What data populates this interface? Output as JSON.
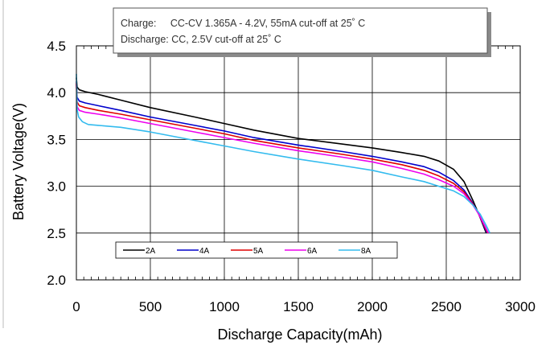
{
  "chart_data": {
    "type": "line",
    "xlabel": "Discharge Capacity(mAh)",
    "ylabel": "Battery Voltage(V)",
    "xlim": [
      0,
      3000
    ],
    "ylim": [
      2.0,
      4.5
    ],
    "xticks": [
      0,
      500,
      1000,
      1500,
      2000,
      2500,
      3000
    ],
    "yticks": [
      2.0,
      2.5,
      3.0,
      3.5,
      4.0,
      4.5
    ],
    "xtick_labels": [
      "0",
      "500",
      "1000",
      "1500",
      "2000",
      "2500",
      "3000"
    ],
    "ytick_labels": [
      "2.0",
      "2.5",
      "3.0",
      "3.5",
      "4.0",
      "4.5"
    ],
    "grid": true,
    "legend_position": "bottom-left",
    "annotation": {
      "line1": "Charge:     CC-CV 1.365A - 4.2V, 55mA cut-off at 25˚ C",
      "line2": "Discharge: CC, 2.5V cut-off at 25˚ C"
    },
    "series": [
      {
        "name": "2A",
        "color": "#000000",
        "x": [
          0,
          5,
          20,
          60,
          150,
          300,
          500,
          800,
          1000,
          1200,
          1500,
          1800,
          2000,
          2200,
          2350,
          2450,
          2550,
          2620,
          2680,
          2720,
          2750,
          2770
        ],
        "y": [
          4.16,
          4.06,
          4.03,
          4.01,
          3.98,
          3.92,
          3.84,
          3.74,
          3.67,
          3.6,
          3.51,
          3.45,
          3.41,
          3.36,
          3.32,
          3.27,
          3.18,
          3.05,
          2.85,
          2.7,
          2.58,
          2.5
        ]
      },
      {
        "name": "4A",
        "color": "#0000CC",
        "x": [
          0,
          5,
          20,
          60,
          150,
          300,
          500,
          800,
          1000,
          1200,
          1500,
          1800,
          2000,
          2200,
          2350,
          2450,
          2550,
          2620,
          2680,
          2720,
          2750,
          2775
        ],
        "y": [
          4.12,
          3.95,
          3.91,
          3.89,
          3.86,
          3.81,
          3.74,
          3.65,
          3.59,
          3.52,
          3.44,
          3.37,
          3.32,
          3.26,
          3.21,
          3.15,
          3.06,
          2.96,
          2.82,
          2.7,
          2.59,
          2.5
        ]
      },
      {
        "name": "5A",
        "color": "#E00000",
        "x": [
          0,
          5,
          20,
          60,
          150,
          300,
          500,
          800,
          1000,
          1200,
          1500,
          1800,
          2000,
          2200,
          2350,
          2450,
          2550,
          2620,
          2680,
          2720,
          2750,
          2780
        ],
        "y": [
          4.1,
          3.9,
          3.86,
          3.84,
          3.81,
          3.77,
          3.71,
          3.62,
          3.56,
          3.49,
          3.41,
          3.34,
          3.29,
          3.23,
          3.17,
          3.11,
          3.03,
          2.94,
          2.81,
          2.7,
          2.6,
          2.5
        ]
      },
      {
        "name": "6A",
        "color": "#EE00EE",
        "x": [
          0,
          5,
          20,
          60,
          150,
          300,
          500,
          800,
          1000,
          1200,
          1500,
          1800,
          2000,
          2200,
          2350,
          2450,
          2550,
          2620,
          2680,
          2720,
          2760,
          2785
        ],
        "y": [
          4.09,
          3.85,
          3.81,
          3.79,
          3.77,
          3.73,
          3.67,
          3.58,
          3.52,
          3.46,
          3.38,
          3.31,
          3.26,
          3.19,
          3.13,
          3.07,
          3.0,
          2.92,
          2.8,
          2.7,
          2.58,
          2.5
        ]
      },
      {
        "name": "8A",
        "color": "#33BBEE",
        "x": [
          0,
          5,
          15,
          40,
          80,
          150,
          300,
          500,
          800,
          1000,
          1200,
          1500,
          1800,
          2000,
          2200,
          2350,
          2450,
          2550,
          2620,
          2680,
          2730,
          2770,
          2795
        ],
        "y": [
          4.2,
          3.82,
          3.74,
          3.69,
          3.66,
          3.65,
          3.63,
          3.58,
          3.49,
          3.43,
          3.37,
          3.29,
          3.22,
          3.17,
          3.1,
          3.05,
          3.0,
          2.95,
          2.89,
          2.8,
          2.7,
          2.58,
          2.5
        ]
      }
    ]
  }
}
